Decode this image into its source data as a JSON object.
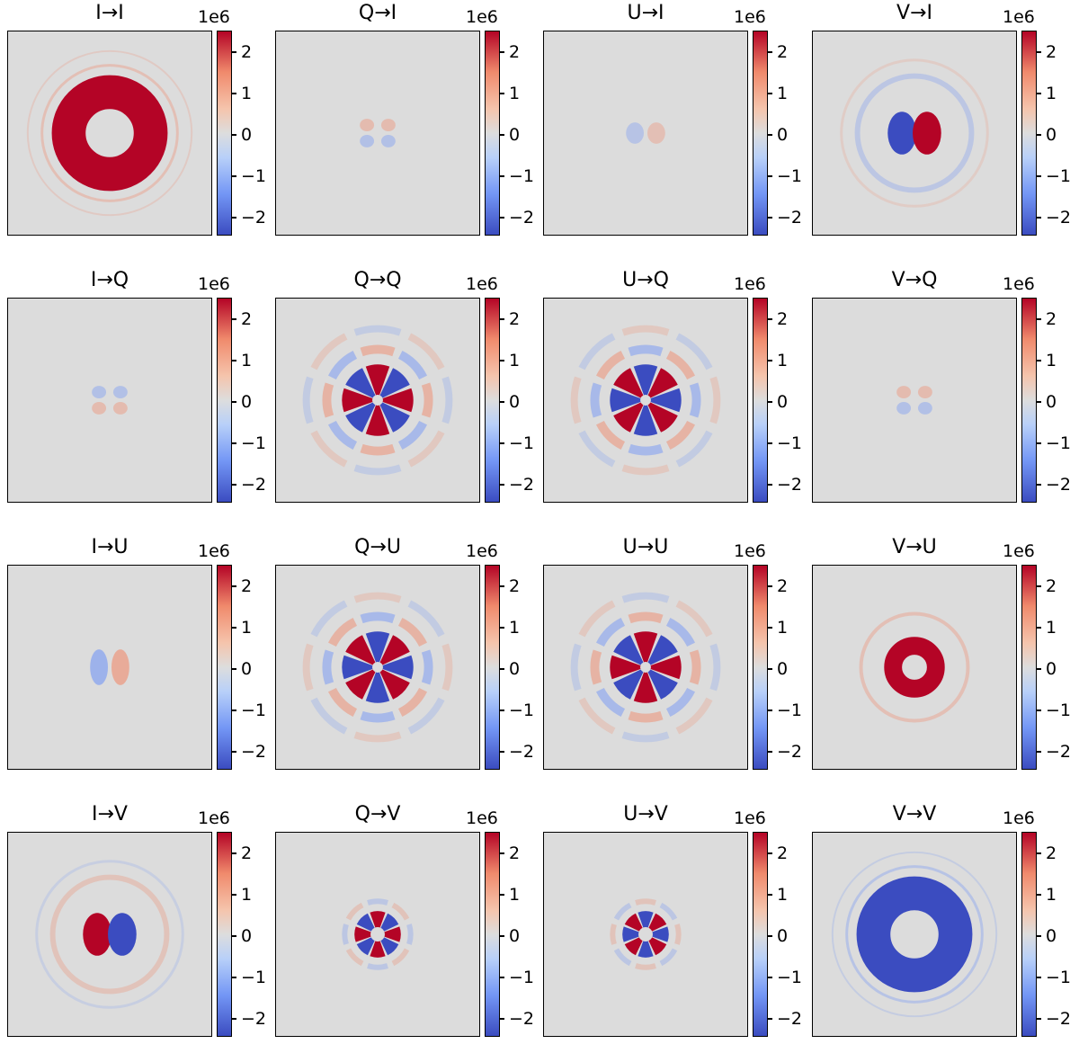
{
  "figure": {
    "colorbar_exponent": "1e6",
    "colorbar_ticks": [
      "2",
      "1",
      "0",
      "−1",
      "−2"
    ],
    "colormap": "coolwarm",
    "colors": {
      "low": "#3b4cc0",
      "mid": "#dddddd",
      "high": "#b40426"
    }
  },
  "panels": [
    {
      "title": "I→I"
    },
    {
      "title": "Q→I"
    },
    {
      "title": "U→I"
    },
    {
      "title": "V→I"
    },
    {
      "title": "I→Q"
    },
    {
      "title": "Q→Q"
    },
    {
      "title": "U→Q"
    },
    {
      "title": "V→Q"
    },
    {
      "title": "I→U"
    },
    {
      "title": "Q→U"
    },
    {
      "title": "U→U"
    },
    {
      "title": "V→U"
    },
    {
      "title": "I→V"
    },
    {
      "title": "Q→V"
    },
    {
      "title": "U→V"
    },
    {
      "title": "V→V"
    }
  ],
  "chart_data": {
    "type": "heatmap",
    "layout": "4x4 grid",
    "colorbar": {
      "range": [
        -2.5,
        2.5
      ],
      "ticks": [
        2,
        1,
        0,
        -1,
        -2
      ],
      "scale_label": "1e6"
    },
    "panels": [
      {
        "title": "I→I",
        "pattern": "disk_rings",
        "sign": 1,
        "amplitude": 1.0
      },
      {
        "title": "Q→I",
        "pattern": "quad_weak",
        "sign": 1,
        "amplitude": 0.15
      },
      {
        "title": "U→I",
        "pattern": "dipole_weak",
        "sign": 1,
        "amplitude": 0.2
      },
      {
        "title": "V→I",
        "pattern": "dipole",
        "sign": 1,
        "amplitude": 1.0
      },
      {
        "title": "I→Q",
        "pattern": "quad_weak",
        "sign": -1,
        "amplitude": 0.2
      },
      {
        "title": "Q→Q",
        "pattern": "petals8",
        "sign": 1,
        "amplitude": 1.0
      },
      {
        "title": "U→Q",
        "pattern": "petals8",
        "sign": -1,
        "amplitude": 1.0
      },
      {
        "title": "V→Q",
        "pattern": "quad_weak",
        "sign": 1,
        "amplitude": 0.15
      },
      {
        "title": "I→U",
        "pattern": "dipole_mid",
        "sign": 1,
        "amplitude": 0.45
      },
      {
        "title": "Q→U",
        "pattern": "petals8",
        "sign": -1,
        "amplitude": 1.0
      },
      {
        "title": "U→U",
        "pattern": "petals8",
        "sign": 1,
        "amplitude": 1.0
      },
      {
        "title": "V→U",
        "pattern": "annulus",
        "sign": 1,
        "amplitude": 1.0
      },
      {
        "title": "I→V",
        "pattern": "dipole",
        "sign": -1,
        "amplitude": 1.0
      },
      {
        "title": "Q→V",
        "pattern": "petals8_small",
        "sign": 1,
        "amplitude": 1.0
      },
      {
        "title": "U→V",
        "pattern": "petals8_small",
        "sign": -1,
        "amplitude": 1.0
      },
      {
        "title": "V→V",
        "pattern": "disk_rings",
        "sign": -1,
        "amplitude": 1.0
      }
    ]
  }
}
